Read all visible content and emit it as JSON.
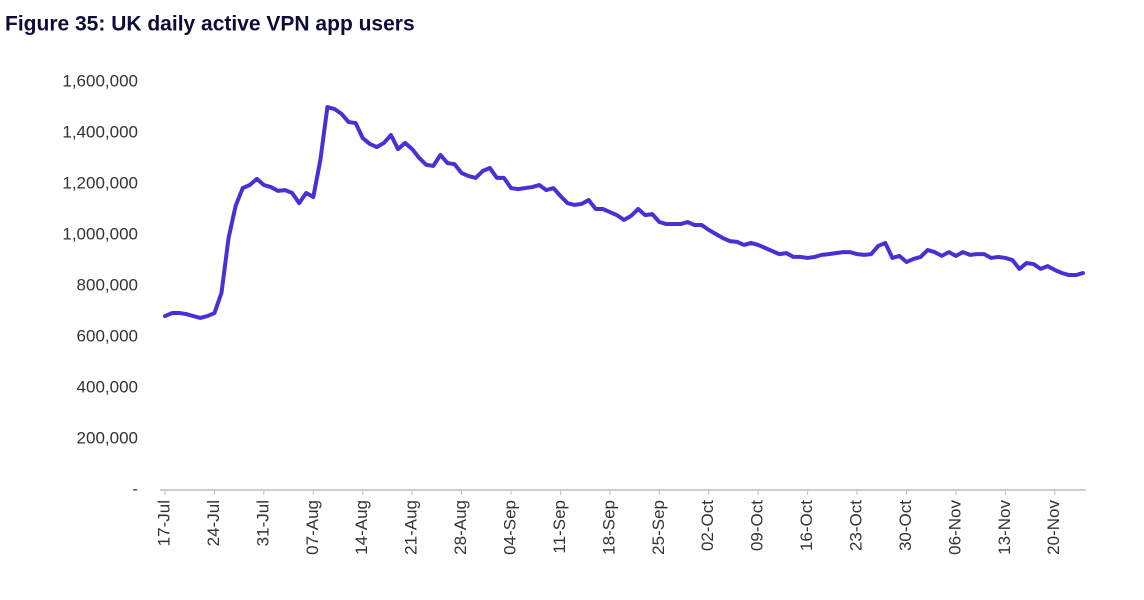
{
  "chart_data": {
    "type": "line",
    "title": "Figure 35: UK daily active VPN app users",
    "categories": [
      "17-Jul",
      null,
      null,
      null,
      null,
      null,
      null,
      "24-Jul",
      null,
      null,
      null,
      null,
      null,
      null,
      "31-Jul",
      null,
      null,
      null,
      null,
      null,
      null,
      "07-Aug",
      null,
      null,
      null,
      null,
      null,
      null,
      "14-Aug",
      null,
      null,
      null,
      null,
      null,
      null,
      "21-Aug",
      null,
      null,
      null,
      null,
      null,
      null,
      "28-Aug",
      null,
      null,
      null,
      null,
      null,
      null,
      "04-Sep",
      null,
      null,
      null,
      null,
      null,
      null,
      "11-Sep",
      null,
      null,
      null,
      null,
      null,
      null,
      "18-Sep",
      null,
      null,
      null,
      null,
      null,
      null,
      "25-Sep",
      null,
      null,
      null,
      null,
      null,
      null,
      "02-Oct",
      null,
      null,
      null,
      null,
      null,
      null,
      "09-Oct",
      null,
      null,
      null,
      null,
      null,
      null,
      "16-Oct",
      null,
      null,
      null,
      null,
      null,
      null,
      "23-Oct",
      null,
      null,
      null,
      null,
      null,
      null,
      "30-Oct",
      null,
      null,
      null,
      null,
      null,
      null,
      "06-Nov",
      null,
      null,
      null,
      null,
      null,
      null,
      "13-Nov",
      null,
      null,
      null,
      null,
      null,
      null,
      "20-Nov",
      null,
      null,
      null,
      null
    ],
    "values": [
      682000,
      694000,
      694000,
      690000,
      682000,
      675000,
      682000,
      694000,
      773000,
      988000,
      1114000,
      1184000,
      1196000,
      1220000,
      1196000,
      1188000,
      1173000,
      1176000,
      1165000,
      1125000,
      1165000,
      1149000,
      1294000,
      1502000,
      1494000,
      1475000,
      1443000,
      1439000,
      1380000,
      1357000,
      1345000,
      1361000,
      1392000,
      1337000,
      1361000,
      1337000,
      1302000,
      1275000,
      1271000,
      1314000,
      1282000,
      1278000,
      1243000,
      1231000,
      1224000,
      1251000,
      1263000,
      1224000,
      1224000,
      1184000,
      1180000,
      1184000,
      1188000,
      1196000,
      1176000,
      1184000,
      1153000,
      1125000,
      1118000,
      1122000,
      1137000,
      1102000,
      1102000,
      1090000,
      1078000,
      1059000,
      1075000,
      1102000,
      1078000,
      1082000,
      1051000,
      1043000,
      1043000,
      1043000,
      1051000,
      1039000,
      1039000,
      1020000,
      1004000,
      988000,
      976000,
      973000,
      961000,
      969000,
      961000,
      949000,
      937000,
      925000,
      929000,
      914000,
      914000,
      910000,
      914000,
      922000,
      925000,
      929000,
      933000,
      933000,
      925000,
      922000,
      925000,
      957000,
      969000,
      910000,
      918000,
      894000,
      906000,
      914000,
      941000,
      933000,
      918000,
      933000,
      918000,
      933000,
      922000,
      925000,
      925000,
      910000,
      914000,
      910000,
      902000,
      867000,
      890000,
      886000,
      867000,
      878000,
      863000,
      851000,
      843000,
      843000,
      851000
    ],
    "color": "#4a2fd5",
    "ylim": [
      0,
      1600000
    ],
    "yticks": [
      {
        "value": 0,
        "label": "-"
      },
      {
        "value": 200000,
        "label": "200,000"
      },
      {
        "value": 400000,
        "label": "400,000"
      },
      {
        "value": 600000,
        "label": "600,000"
      },
      {
        "value": 800000,
        "label": "800,000"
      },
      {
        "value": 1000000,
        "label": "1,000,000"
      },
      {
        "value": 1200000,
        "label": "1,200,000"
      },
      {
        "value": 1400000,
        "label": "1,400,000"
      },
      {
        "value": 1600000,
        "label": "1,600,000"
      }
    ]
  }
}
